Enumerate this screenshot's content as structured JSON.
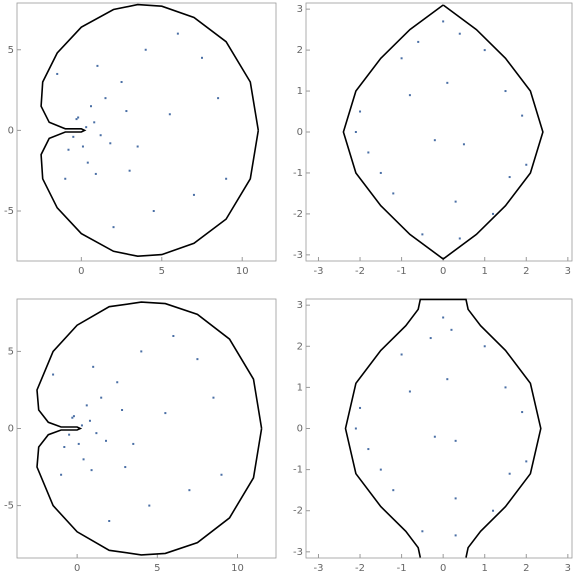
{
  "chart_data": [
    {
      "type": "scatter",
      "color": "#4a6fa5",
      "xlim": [
        -4,
        12.1
      ],
      "ylim": [
        -8.1,
        7.9
      ],
      "xticks": [
        0,
        5,
        10
      ],
      "yticks": [
        -5,
        0,
        5
      ],
      "points": {
        "x": [
          0.3,
          -0.5,
          0.8,
          0.1,
          -0.2,
          1.2,
          0.6,
          -0.8,
          1.5,
          2.5,
          3,
          4,
          5.5,
          7,
          8.5,
          2,
          1,
          -1.5,
          3.5,
          6,
          9,
          0.4,
          -0.3,
          4.5,
          2.8,
          1.8,
          7.5,
          0.9,
          -1
        ],
        "y": [
          0.2,
          -0.4,
          0.5,
          -1,
          0.8,
          -0.3,
          1.5,
          -1.2,
          2,
          3,
          -2.5,
          5,
          1,
          -4,
          2,
          -6,
          4,
          3.5,
          -1,
          6,
          -3,
          -2,
          0.7,
          -5,
          1.2,
          -0.8,
          4.5,
          -2.7,
          -3
        ]
      },
      "boundary": {
        "x": [
          11,
          10.5,
          9,
          7,
          5,
          3.5,
          2,
          0,
          -1.5,
          -2.4,
          -2.5,
          -2,
          -1,
          0,
          0.2,
          0,
          -1,
          -2,
          -2.5,
          -2.4,
          -1.5,
          0,
          2,
          3.5,
          5,
          7,
          9,
          10.5,
          11
        ],
        "y": [
          0,
          3,
          5.5,
          7,
          7.7,
          7.8,
          7.5,
          6.4,
          4.8,
          3,
          1.5,
          0.5,
          0.1,
          0.1,
          0,
          -0.1,
          -0.1,
          -0.5,
          -1.5,
          -3,
          -4.8,
          -6.4,
          -7.5,
          -7.8,
          -7.7,
          -7,
          -5.5,
          -3,
          0
        ]
      }
    },
    {
      "type": "scatter",
      "color": "#4a6fa5",
      "xlim": [
        -3.3,
        3.1
      ],
      "ylim": [
        -3.15,
        3.15
      ],
      "xticks": [
        -3,
        -2,
        -1,
        0,
        1,
        2,
        3
      ],
      "yticks": [
        -3,
        -2,
        -1,
        0,
        1,
        2,
        3
      ],
      "points": {
        "x": [
          -2,
          -1.5,
          -1,
          -0.5,
          0,
          0.5,
          1,
          1.5,
          2,
          -1.8,
          -0.8,
          0.3,
          1.2,
          1.9,
          -1.2,
          0.4,
          -0.2,
          0.1,
          1.6,
          -2.1,
          0.4,
          -0.6
        ],
        "y": [
          0.5,
          -1,
          1.8,
          -2.5,
          2.7,
          -0.3,
          2,
          1,
          -0.8,
          -0.5,
          0.9,
          -1.7,
          -2,
          0.4,
          -1.5,
          -2.6,
          -0.2,
          1.2,
          -1.1,
          0,
          2.4,
          2.2
        ]
      },
      "boundary": {
        "x": [
          0,
          0.8,
          1.5,
          2.1,
          2.4,
          2.1,
          1.5,
          0.8,
          0,
          -0.8,
          -1.5,
          -2.1,
          -2.4,
          -2.1,
          -1.5,
          -0.8,
          0
        ],
        "y": [
          3.1,
          2.5,
          1.8,
          1,
          0,
          -1,
          -1.8,
          -2.5,
          -3.1,
          -2.5,
          -1.8,
          -1,
          0,
          1,
          1.8,
          2.5,
          3.1
        ]
      }
    },
    {
      "type": "scatter",
      "color": "#4a6fa5",
      "xlim": [
        -3.75,
        12.4
      ],
      "ylim": [
        -8.4,
        8.4
      ],
      "xticks": [
        0,
        5,
        10
      ],
      "yticks": [
        -5,
        0,
        5
      ],
      "points": {
        "x": [
          0.3,
          -0.5,
          0.8,
          0.1,
          -0.2,
          1.2,
          0.6,
          -0.8,
          1.5,
          2.5,
          3,
          4,
          5.5,
          7,
          8.5,
          2,
          1,
          -1.5,
          3.5,
          6,
          9,
          0.4,
          -0.3,
          4.5,
          2.8,
          1.8,
          7.5,
          0.9,
          -1
        ],
        "y": [
          0.2,
          -0.4,
          0.5,
          -1,
          0.8,
          -0.3,
          1.5,
          -1.2,
          2,
          3,
          -2.5,
          5,
          1,
          -4,
          2,
          -6,
          4,
          3.5,
          -1,
          6,
          -3,
          -2,
          0.7,
          -5,
          1.2,
          -0.8,
          4.5,
          -2.7,
          -3
        ]
      },
      "boundary": {
        "x": [
          11.5,
          11,
          9.5,
          7.5,
          5.5,
          4,
          2,
          0,
          -1.5,
          -2.5,
          -2.4,
          -1.8,
          -1,
          0,
          0.2,
          0,
          -1,
          -1.8,
          -2.4,
          -2.5,
          -1.5,
          0,
          2,
          4,
          5.5,
          7.5,
          9.5,
          11,
          11.5
        ],
        "y": [
          0,
          3.2,
          5.8,
          7.4,
          8.1,
          8.2,
          7.9,
          6.7,
          5,
          2.5,
          1.2,
          0.4,
          0.1,
          0.1,
          0,
          -0.1,
          -0.1,
          -0.4,
          -1.2,
          -2.5,
          -5,
          -6.7,
          -7.9,
          -8.2,
          -8.1,
          -7.4,
          -5.8,
          -3.2,
          0
        ]
      }
    },
    {
      "type": "scatter",
      "color": "#4a6fa5",
      "xlim": [
        -3.3,
        3.1
      ],
      "ylim": [
        -3.15,
        3.15
      ],
      "xticks": [
        -3,
        -2,
        -1,
        0,
        1,
        2,
        3
      ],
      "yticks": [
        -3,
        -2,
        -1,
        0,
        1,
        2,
        3
      ],
      "points": {
        "x": [
          -2,
          -1.5,
          -1,
          -0.5,
          0,
          0.3,
          1,
          1.5,
          2,
          -1.8,
          -0.8,
          0.3,
          1.2,
          1.9,
          -1.2,
          0.3,
          -0.2,
          0.1,
          1.6,
          -2.1,
          0.2,
          -0.3
        ],
        "y": [
          0.5,
          -1,
          1.8,
          -2.5,
          2.7,
          -0.3,
          2,
          1,
          -0.8,
          -0.5,
          0.9,
          -1.7,
          -2,
          0.4,
          -1.5,
          -2.6,
          -0.2,
          1.2,
          -1.1,
          0,
          2.4,
          2.2
        ]
      },
      "boundary": {
        "x": [
          -0.55,
          -0.6,
          -0.9,
          -1.5,
          -2.1,
          -2.35,
          -2.1,
          -1.5,
          -0.9,
          -0.6,
          -0.55,
          0.55,
          0.6,
          0.9,
          1.5,
          2.1,
          2.35,
          2.1,
          1.5,
          0.9,
          0.6,
          0.55
        ],
        "y": [
          -3.14,
          -2.9,
          -2.5,
          -1.9,
          -1.1,
          0,
          1.1,
          1.9,
          2.5,
          2.9,
          3.14,
          3.14,
          2.9,
          2.5,
          1.9,
          1.1,
          0,
          -1.1,
          -1.9,
          -2.5,
          -2.9,
          -3.14
        ]
      }
    }
  ]
}
